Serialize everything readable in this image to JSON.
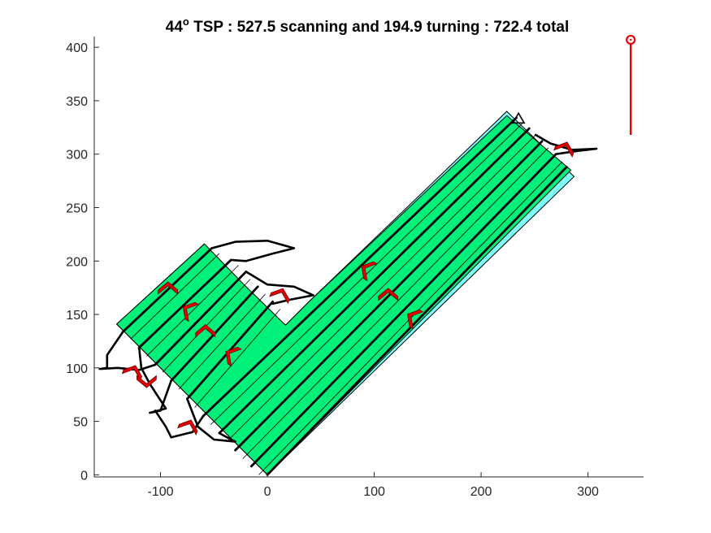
{
  "chart_data": {
    "type": "line",
    "title": {
      "angle": "44",
      "degree_symbol": "o",
      "rest": " TSP : 527.5 scanning and 194.9 turning : 722.4 total"
    },
    "xlabel": "",
    "ylabel": "",
    "xlim": [
      -162,
      352
    ],
    "ylim": [
      -2,
      410
    ],
    "x_ticks": [
      -100,
      0,
      100,
      200,
      300
    ],
    "y_ticks": [
      0,
      50,
      100,
      150,
      200,
      250,
      300,
      350,
      400
    ],
    "grid": false,
    "colors": {
      "field_fill": "#00f07a",
      "boundary_fill": "#80ffff",
      "pass_line": "#000000",
      "turn_marker": "#e00000",
      "marker_edge": "#6a0000",
      "start_marker": "#000000",
      "wind_indicator": "#ee0000"
    },
    "boundary_polygon": [
      [
        0,
        0
      ],
      [
        287,
        279
      ],
      [
        224,
        340
      ],
      [
        40,
        163
      ],
      [
        17,
        140
      ],
      [
        -22,
        178
      ],
      [
        -59,
        216
      ],
      [
        -141,
        141
      ]
    ],
    "field_polygon": [
      [
        0,
        0
      ],
      [
        284,
        285
      ],
      [
        224,
        336
      ],
      [
        40,
        163
      ],
      [
        17,
        140
      ],
      [
        -22,
        178
      ],
      [
        -59,
        216
      ],
      [
        -141,
        141
      ]
    ],
    "thin_lines": [
      [
        [
          -128,
          127
        ],
        [
          -45,
          207
        ]
      ],
      [
        [
          -113,
          111
        ],
        [
          -27,
          196
        ]
      ],
      [
        [
          -98,
          96
        ],
        [
          -16,
          183
        ]
      ],
      [
        [
          -83,
          80
        ],
        [
          -2,
          169
        ]
      ],
      [
        [
          -68,
          63
        ],
        [
          12,
          155
        ]
      ],
      [
        [
          -53,
          47
        ],
        [
          240,
          330
        ]
      ],
      [
        [
          -38,
          31
        ],
        [
          251,
          318
        ]
      ],
      [
        [
          -23,
          15
        ],
        [
          263,
          306
        ]
      ],
      [
        [
          -8,
          0
        ],
        [
          276,
          293
        ]
      ]
    ],
    "thick_lines": [
      [
        [
          -135,
          134
        ],
        [
          -52,
          212
        ]
      ],
      [
        [
          -120,
          119
        ],
        [
          -34,
          201
        ]
      ],
      [
        [
          -105,
          103
        ],
        [
          -20,
          190
        ]
      ],
      [
        [
          -90,
          88
        ],
        [
          -9,
          176
        ]
      ],
      [
        [
          -75,
          71
        ],
        [
          5,
          162
        ]
      ],
      [
        [
          -60,
          55
        ],
        [
          233,
          334
        ]
      ],
      [
        [
          -45,
          39
        ],
        [
          245,
          324
        ]
      ],
      [
        [
          -30,
          23
        ],
        [
          257,
          312
        ]
      ],
      [
        [
          -15,
          8
        ],
        [
          270,
          300
        ]
      ],
      [
        [
          0,
          0
        ],
        [
          280,
          288
        ]
      ]
    ],
    "turn_curves": [
      [
        [
          -52,
          212
        ],
        [
          -30,
          218
        ],
        [
          0,
          219
        ],
        [
          25,
          212
        ],
        [
          5,
          207
        ],
        [
          -20,
          200
        ],
        [
          -34,
          201
        ]
      ],
      [
        [
          -20,
          190
        ],
        [
          0,
          178
        ],
        [
          25,
          176
        ],
        [
          43,
          168
        ],
        [
          22,
          164
        ],
        [
          5,
          160
        ]
      ],
      [
        [
          -135,
          134
        ],
        [
          -150,
          112
        ],
        [
          -150,
          100
        ],
        [
          -157,
          99
        ],
        [
          -140,
          100
        ],
        [
          -120,
          98
        ],
        [
          -105,
          103
        ]
      ],
      [
        [
          -120,
          119
        ],
        [
          -118,
          100
        ],
        [
          -110,
          85
        ],
        [
          -95,
          62
        ],
        [
          -110,
          58
        ],
        [
          -100,
          60
        ],
        [
          -90,
          88
        ]
      ],
      [
        [
          -105,
          60
        ],
        [
          -95,
          45
        ],
        [
          -90,
          35
        ],
        [
          -70,
          40
        ],
        [
          -60,
          55
        ]
      ],
      [
        [
          -75,
          71
        ],
        [
          -65,
          45
        ],
        [
          -50,
          33
        ],
        [
          -30,
          31
        ],
        [
          -45,
          39
        ]
      ],
      [
        [
          251,
          318
        ],
        [
          265,
          310
        ],
        [
          285,
          304
        ],
        [
          308,
          305
        ],
        [
          290,
          303
        ],
        [
          270,
          300
        ]
      ]
    ],
    "turn_markers": [
      {
        "x": -93,
        "y": 176,
        "angle": 0
      },
      {
        "x": -75,
        "y": 155,
        "angle": -60
      },
      {
        "x": -58,
        "y": 136,
        "angle": 0
      },
      {
        "x": -35,
        "y": 113,
        "angle": -60
      },
      {
        "x": 13,
        "y": 170,
        "angle": 20
      },
      {
        "x": -125,
        "y": 98,
        "angle": 20
      },
      {
        "x": -113,
        "y": 86,
        "angle": 180
      },
      {
        "x": -73,
        "y": 47,
        "angle": 20
      },
      {
        "x": 92,
        "y": 193,
        "angle": -60
      },
      {
        "x": 113,
        "y": 170,
        "angle": 0
      },
      {
        "x": 135,
        "y": 148,
        "angle": -60
      },
      {
        "x": 279,
        "y": 307,
        "angle": 20
      }
    ],
    "start_marker": {
      "x": 235,
      "y": 333
    },
    "wind_indicator": {
      "x": 340,
      "y_top": 407,
      "y_bottom": 318
    }
  }
}
